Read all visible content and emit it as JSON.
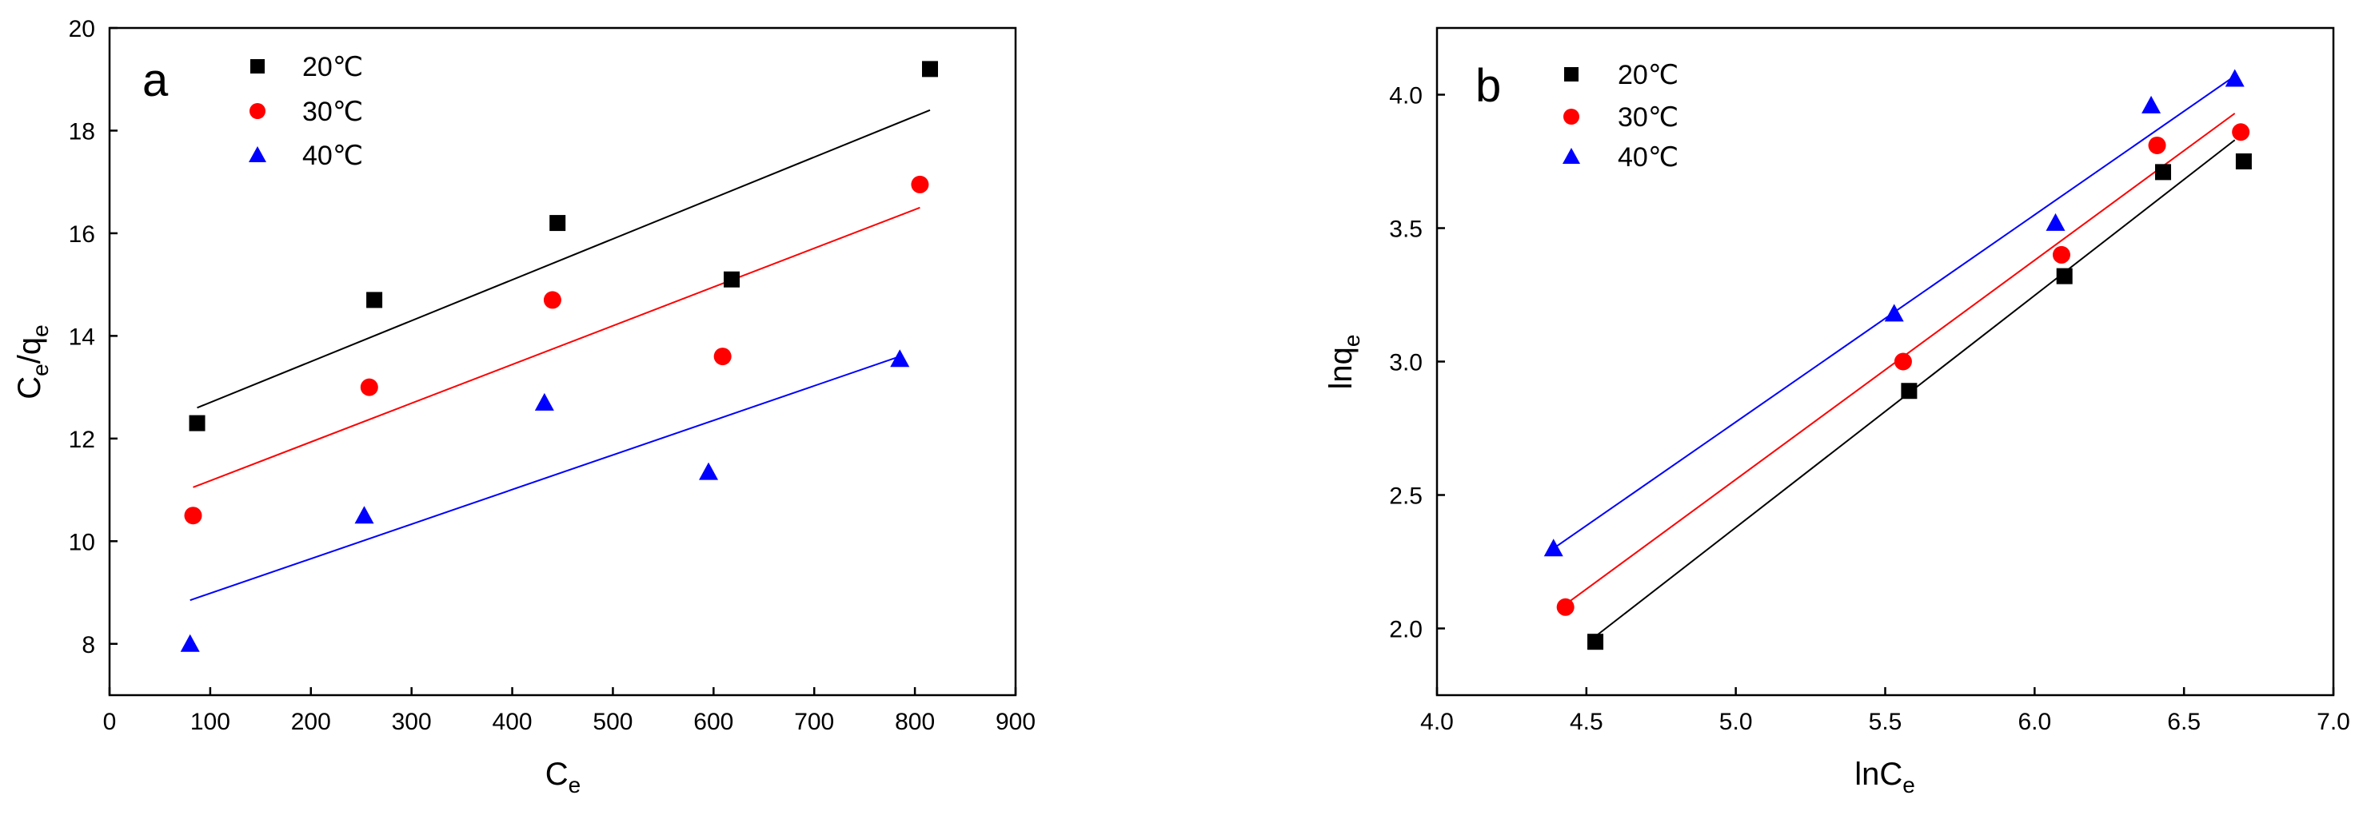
{
  "chart_data": [
    {
      "type": "scatter",
      "panel_label": "a",
      "title": "",
      "xlabel": "C",
      "xlabel_sub": "e",
      "ylabel": "C",
      "ylabel_sub1": "e",
      "ylabel_mid": "/q",
      "ylabel_sub2": "e",
      "xlim": [
        0,
        900
      ],
      "ylim": [
        7,
        20
      ],
      "xticks": [
        0,
        100,
        200,
        300,
        400,
        500,
        600,
        700,
        800,
        900
      ],
      "yticks": [
        8,
        10,
        12,
        14,
        16,
        18,
        20
      ],
      "legend_position": "top-left",
      "series": [
        {
          "name": "20℃",
          "marker": "square",
          "color": "#000000",
          "x": [
            87,
            263,
            445,
            618,
            815
          ],
          "y": [
            12.3,
            14.7,
            16.2,
            15.1,
            19.2
          ],
          "fit": {
            "x": [
              87,
              815
            ],
            "y": [
              12.6,
              18.4
            ]
          }
        },
        {
          "name": "30℃",
          "marker": "circle",
          "color": "#ff0000",
          "x": [
            83,
            258,
            440,
            609,
            805
          ],
          "y": [
            10.5,
            13.0,
            14.7,
            13.6,
            16.95
          ],
          "fit": {
            "x": [
              83,
              805
            ],
            "y": [
              11.05,
              16.5
            ]
          }
        },
        {
          "name": "40℃",
          "marker": "triangle",
          "color": "#0000ff",
          "x": [
            80,
            253,
            432,
            595,
            785
          ],
          "y": [
            8.0,
            10.5,
            12.7,
            11.35,
            13.55
          ],
          "fit": {
            "x": [
              80,
              785
            ],
            "y": [
              8.85,
              13.6
            ]
          }
        }
      ]
    },
    {
      "type": "scatter",
      "panel_label": "b",
      "title": "",
      "xlabel": "lnC",
      "xlabel_sub": "e",
      "ylabel": "lnq",
      "ylabel_sub": "e",
      "xlim": [
        4.0,
        7.0
      ],
      "ylim": [
        1.75,
        4.25
      ],
      "xticks": [
        "4.0",
        "4.5",
        "5.0",
        "5.5",
        "6.0",
        "6.5",
        "7.0"
      ],
      "yticks": [
        "2.0",
        "2.5",
        "3.0",
        "3.5",
        "4.0"
      ],
      "legend_position": "top-left",
      "series": [
        {
          "name": "20℃",
          "marker": "square",
          "color": "#000000",
          "x": [
            4.53,
            5.58,
            6.1,
            6.43,
            6.7
          ],
          "y": [
            1.95,
            2.89,
            3.32,
            3.71,
            3.75
          ],
          "fit": {
            "x": [
              4.53,
              6.67
            ],
            "y": [
              1.97,
              3.83
            ]
          }
        },
        {
          "name": "30℃",
          "marker": "circle",
          "color": "#ff0000",
          "x": [
            4.43,
            5.56,
            6.09,
            6.41,
            6.69
          ],
          "y": [
            2.08,
            3.0,
            3.4,
            3.81,
            3.86
          ],
          "fit": {
            "x": [
              4.43,
              6.67
            ],
            "y": [
              2.09,
              3.93
            ]
          }
        },
        {
          "name": "40℃",
          "marker": "triangle",
          "color": "#0000ff",
          "x": [
            4.39,
            5.53,
            6.07,
            6.39,
            6.67
          ],
          "y": [
            2.3,
            3.18,
            3.52,
            3.96,
            4.06
          ],
          "fit": {
            "x": [
              4.39,
              6.67
            ],
            "y": [
              2.3,
              4.07
            ]
          }
        }
      ]
    }
  ]
}
